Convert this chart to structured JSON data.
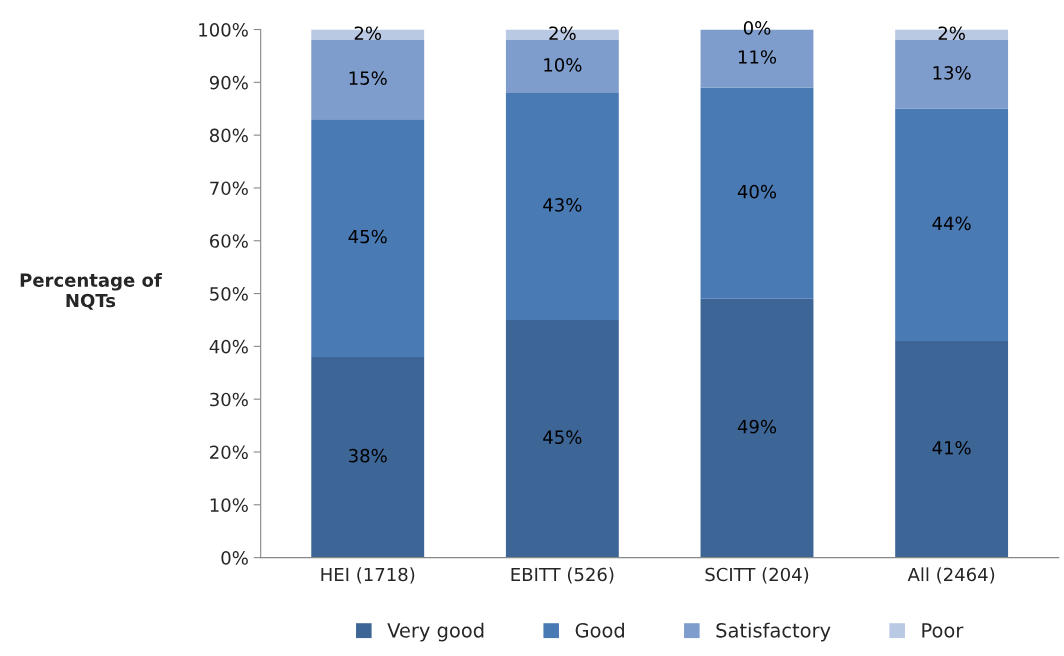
{
  "chart_data": {
    "type": "bar",
    "stacked": true,
    "ylabel": "Percentage of\nNQTs",
    "categories": [
      "HEI (1718)",
      "EBITT (526)",
      "SCITT (204)",
      "All (2464)"
    ],
    "series": [
      {
        "name": "Very good",
        "color": "#3d6596",
        "values": [
          38,
          45,
          49,
          41
        ],
        "value_labels": [
          "38%",
          "45%",
          "49%",
          "41%"
        ]
      },
      {
        "name": "Good",
        "color": "#4a7ab4",
        "values": [
          45,
          43,
          40,
          44
        ],
        "value_labels": [
          "45%",
          "43%",
          "40%",
          "44%"
        ]
      },
      {
        "name": "Satisfactory",
        "color": "#7f9dcc",
        "values": [
          15,
          10,
          11,
          13
        ],
        "value_labels": [
          "15%",
          "10%",
          "11%",
          "13%"
        ]
      },
      {
        "name": "Poor",
        "color": "#b9c8e3",
        "values": [
          2,
          2,
          0,
          2
        ],
        "value_labels": [
          "2%",
          "2%",
          "0%",
          "2%"
        ]
      }
    ],
    "ylim": [
      0,
      100
    ],
    "yticks": [
      {
        "value": 0,
        "label": "0%"
      },
      {
        "value": 10,
        "label": "10%"
      },
      {
        "value": 20,
        "label": "20%"
      },
      {
        "value": 30,
        "label": "30%"
      },
      {
        "value": 40,
        "label": "40%"
      },
      {
        "value": 50,
        "label": "50%"
      },
      {
        "value": 60,
        "label": "60%"
      },
      {
        "value": 70,
        "label": "70%"
      },
      {
        "value": 80,
        "label": "80%"
      },
      {
        "value": 90,
        "label": "90%"
      },
      {
        "value": 100,
        "label": "100%"
      }
    ],
    "grid": false,
    "legend": "bottom"
  }
}
